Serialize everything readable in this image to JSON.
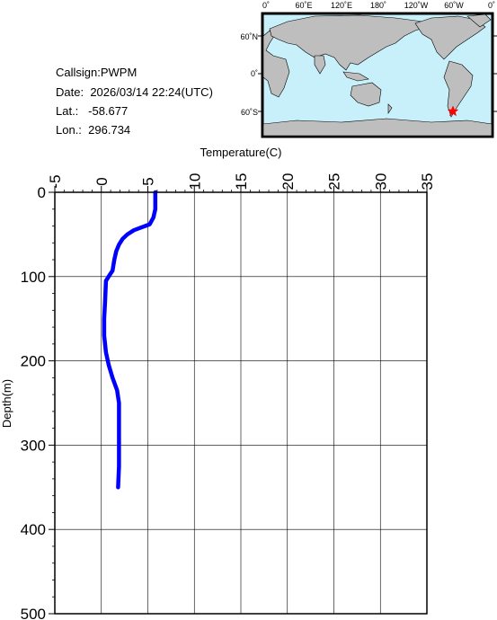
{
  "station": {
    "callsign_label": "Callsign:",
    "callsign": "PWPM",
    "date_label": "Date:",
    "date": "2026/03/14 22:24(UTC)",
    "lat_label": "Lat.:",
    "lat": "-58.677",
    "lon_label": "Lon.:",
    "lon": "296.734"
  },
  "map": {
    "top_ticks": [
      "0˚",
      "60˚E",
      "120˚E",
      "180˚",
      "120˚W",
      "60˚W",
      "0˚"
    ],
    "right_ticks": [
      "60˚N",
      "0˚",
      "60˚S"
    ],
    "ocean_color": "#c8f0fa",
    "land_color": "#bebebe",
    "marker_color": "#ff0000",
    "marker_icon": "star-icon"
  },
  "chart_data": {
    "type": "line",
    "xlabel": "Temperature(C)",
    "ylabel": "Depth(m)",
    "xlim": [
      -5,
      35
    ],
    "ylim": [
      0,
      500
    ],
    "y_inverted": true,
    "x_ticks": [
      "-5",
      "0",
      "5",
      "10",
      "15",
      "20",
      "25",
      "30",
      "35"
    ],
    "y_ticks": [
      "0",
      "100",
      "200",
      "300",
      "400",
      "500"
    ],
    "grid": true,
    "line_color": "#0000ff",
    "series": [
      {
        "x": [
          5.8,
          5.8,
          5.8,
          5.6,
          5.2,
          3.5,
          2.8,
          2.3,
          1.9,
          1.6,
          1.4,
          1.2,
          0.9,
          0.5,
          0.4,
          0.3,
          0.3,
          0.5,
          0.8,
          1.2,
          1.7,
          1.9,
          1.9,
          1.9,
          1.9,
          1.8
        ],
        "y": [
          0,
          10,
          20,
          30,
          38,
          45,
          50,
          55,
          62,
          70,
          80,
          93,
          98,
          105,
          130,
          150,
          170,
          190,
          205,
          220,
          235,
          250,
          275,
          300,
          325,
          350
        ]
      }
    ]
  }
}
